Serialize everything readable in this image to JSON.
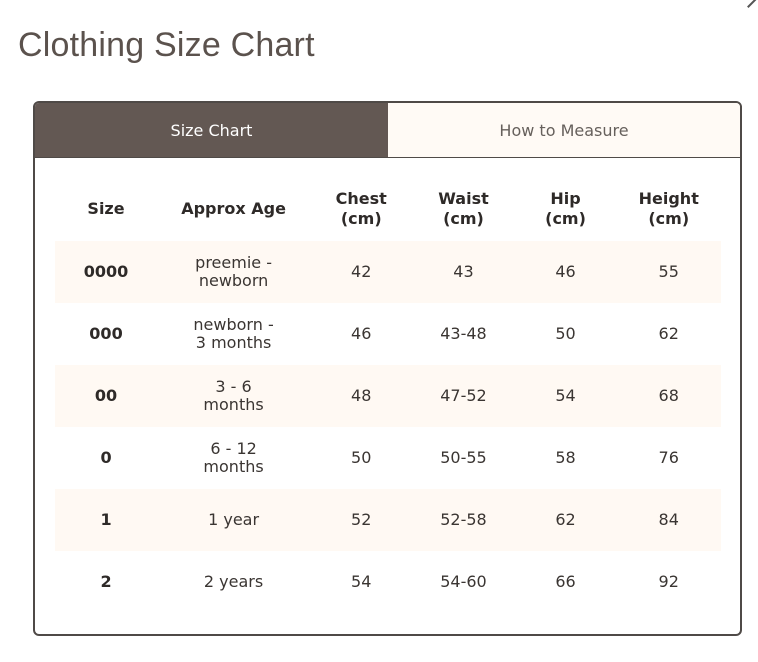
{
  "page": {
    "title": "Clothing Size Chart",
    "close_icon": "close-icon"
  },
  "tabs": [
    {
      "label": "Size Chart",
      "active": true
    },
    {
      "label": "How to Measure",
      "active": false
    }
  ],
  "table": {
    "headers": [
      "Size",
      "Approx Age",
      "Chest (cm)",
      "Waist (cm)",
      "Hip (cm)",
      "Height (cm)"
    ],
    "rows": [
      [
        "0000",
        "preemie - newborn",
        "42",
        "43",
        "46",
        "55"
      ],
      [
        "000",
        "newborn - 3 months",
        "46",
        "43-48",
        "50",
        "62"
      ],
      [
        "00",
        "3 - 6 months",
        "48",
        "47-52",
        "54",
        "68"
      ],
      [
        "0",
        "6 - 12 months",
        "50",
        "50-55",
        "58",
        "76"
      ],
      [
        "1",
        "1 year",
        "52",
        "52-58",
        "62",
        "84"
      ],
      [
        "2",
        "2 years",
        "54",
        "54-60",
        "66",
        "92"
      ]
    ]
  },
  "colors": {
    "active_tab": "#635853",
    "inactive_tab": "#fffaf5",
    "stripe": "#fff9f3",
    "border": "#4f4a47"
  }
}
